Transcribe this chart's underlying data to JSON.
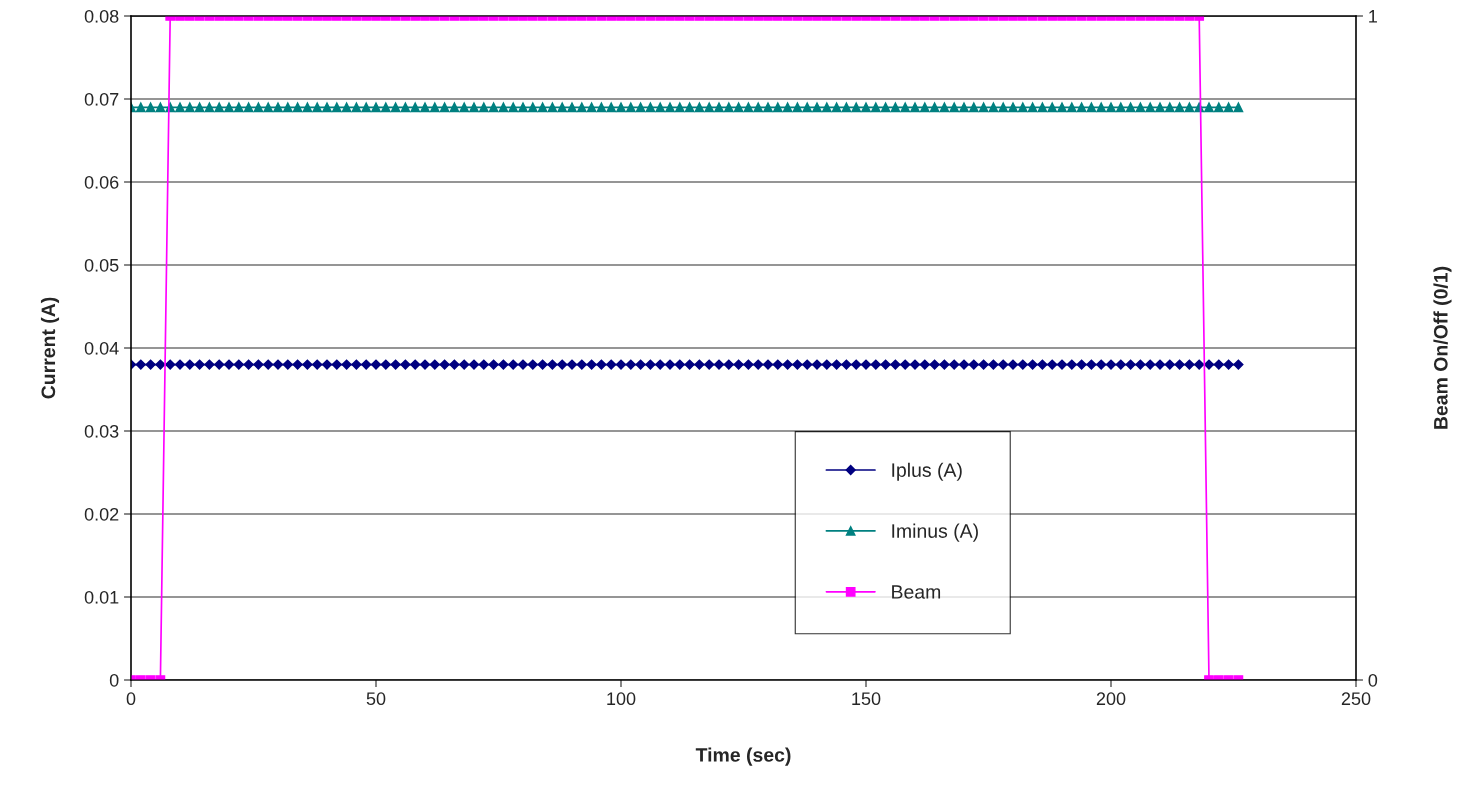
{
  "chart_data": {
    "type": "line",
    "xlabel": "Time (sec)",
    "ylabel": "Current (A)",
    "y2label": "Beam On/Off (0/1)",
    "xlim": [
      0,
      250
    ],
    "xticks": [
      0,
      50,
      100,
      150,
      200,
      250
    ],
    "ylim": [
      0,
      0.08
    ],
    "yticks": [
      0,
      0.01,
      0.02,
      0.03,
      0.04,
      0.05,
      0.06,
      0.07,
      0.08
    ],
    "y2lim": [
      0,
      1
    ],
    "y2ticks": [
      0,
      1
    ],
    "grid": "y",
    "legend": "bottom",
    "line_style": "solid",
    "x": [
      0,
      2,
      4,
      6,
      8,
      10,
      12,
      14,
      16,
      18,
      20,
      22,
      24,
      26,
      28,
      30,
      32,
      34,
      36,
      38,
      40,
      42,
      44,
      46,
      48,
      50,
      52,
      54,
      56,
      58,
      60,
      62,
      64,
      66,
      68,
      70,
      72,
      74,
      76,
      78,
      80,
      82,
      84,
      86,
      88,
      90,
      92,
      94,
      96,
      98,
      100,
      102,
      104,
      106,
      108,
      110,
      112,
      114,
      116,
      118,
      120,
      122,
      124,
      126,
      128,
      130,
      132,
      134,
      136,
      138,
      140,
      142,
      144,
      146,
      148,
      150,
      152,
      154,
      156,
      158,
      160,
      162,
      164,
      166,
      168,
      170,
      172,
      174,
      176,
      178,
      180,
      182,
      184,
      186,
      188,
      190,
      192,
      194,
      196,
      198,
      200,
      202,
      204,
      206,
      208,
      210,
      212,
      214,
      216,
      218,
      220,
      222,
      224,
      226
    ],
    "series": [
      {
        "name": "Iplus (A)",
        "color": "#000080",
        "marker": "diamond",
        "values": [
          0.038,
          0.038,
          0.038,
          0.038,
          0.038,
          0.038,
          0.038,
          0.038,
          0.038,
          0.038,
          0.038,
          0.038,
          0.038,
          0.038,
          0.038,
          0.038,
          0.038,
          0.038,
          0.038,
          0.038,
          0.038,
          0.038,
          0.038,
          0.038,
          0.038,
          0.038,
          0.038,
          0.038,
          0.038,
          0.038,
          0.038,
          0.038,
          0.038,
          0.038,
          0.038,
          0.038,
          0.038,
          0.038,
          0.038,
          0.038,
          0.038,
          0.038,
          0.038,
          0.038,
          0.038,
          0.038,
          0.038,
          0.038,
          0.038,
          0.038,
          0.038,
          0.038,
          0.038,
          0.038,
          0.038,
          0.038,
          0.038,
          0.038,
          0.038,
          0.038,
          0.038,
          0.038,
          0.038,
          0.038,
          0.038,
          0.038,
          0.038,
          0.038,
          0.038,
          0.038,
          0.038,
          0.038,
          0.038,
          0.038,
          0.038,
          0.038,
          0.038,
          0.038,
          0.038,
          0.038,
          0.038,
          0.038,
          0.038,
          0.038,
          0.038,
          0.038,
          0.038,
          0.038,
          0.038,
          0.038,
          0.038,
          0.038,
          0.038,
          0.038,
          0.038,
          0.038,
          0.038,
          0.038,
          0.038,
          0.038,
          0.038,
          0.038,
          0.038,
          0.038,
          0.038,
          0.038,
          0.038,
          0.038,
          0.038,
          0.038,
          0.038,
          0.038,
          0.038,
          0.038
        ]
      },
      {
        "name": "Iminus (A)",
        "color": "#008080",
        "marker": "triangle",
        "values": [
          0.069,
          0.069,
          0.069,
          0.069,
          0.069,
          0.069,
          0.069,
          0.069,
          0.069,
          0.069,
          0.069,
          0.069,
          0.069,
          0.069,
          0.069,
          0.069,
          0.069,
          0.069,
          0.069,
          0.069,
          0.069,
          0.069,
          0.069,
          0.069,
          0.069,
          0.069,
          0.069,
          0.069,
          0.069,
          0.069,
          0.069,
          0.069,
          0.069,
          0.069,
          0.069,
          0.069,
          0.069,
          0.069,
          0.069,
          0.069,
          0.069,
          0.069,
          0.069,
          0.069,
          0.069,
          0.069,
          0.069,
          0.069,
          0.069,
          0.069,
          0.069,
          0.069,
          0.069,
          0.069,
          0.069,
          0.069,
          0.069,
          0.069,
          0.069,
          0.069,
          0.069,
          0.069,
          0.069,
          0.069,
          0.069,
          0.069,
          0.069,
          0.069,
          0.069,
          0.069,
          0.069,
          0.069,
          0.069,
          0.069,
          0.069,
          0.069,
          0.069,
          0.069,
          0.069,
          0.069,
          0.069,
          0.069,
          0.069,
          0.069,
          0.069,
          0.069,
          0.069,
          0.069,
          0.069,
          0.069,
          0.069,
          0.069,
          0.069,
          0.069,
          0.069,
          0.069,
          0.069,
          0.069,
          0.069,
          0.069,
          0.069,
          0.069,
          0.069,
          0.069,
          0.069,
          0.069,
          0.069,
          0.069,
          0.069,
          0.069,
          0.069,
          0.069,
          0.069,
          0.069
        ]
      },
      {
        "name": "Beam",
        "color": "#ff00ff",
        "marker": "square",
        "axis": "y2",
        "values": [
          0,
          0,
          0,
          0,
          1,
          1,
          1,
          1,
          1,
          1,
          1,
          1,
          1,
          1,
          1,
          1,
          1,
          1,
          1,
          1,
          1,
          1,
          1,
          1,
          1,
          1,
          1,
          1,
          1,
          1,
          1,
          1,
          1,
          1,
          1,
          1,
          1,
          1,
          1,
          1,
          1,
          1,
          1,
          1,
          1,
          1,
          1,
          1,
          1,
          1,
          1,
          1,
          1,
          1,
          1,
          1,
          1,
          1,
          1,
          1,
          1,
          1,
          1,
          1,
          1,
          1,
          1,
          1,
          1,
          1,
          1,
          1,
          1,
          1,
          1,
          1,
          1,
          1,
          1,
          1,
          1,
          1,
          1,
          1,
          1,
          1,
          1,
          1,
          1,
          1,
          1,
          1,
          1,
          1,
          1,
          1,
          1,
          1,
          1,
          1,
          1,
          1,
          1,
          1,
          1,
          1,
          1,
          1,
          1,
          1,
          0,
          0,
          0,
          0
        ]
      }
    ]
  }
}
